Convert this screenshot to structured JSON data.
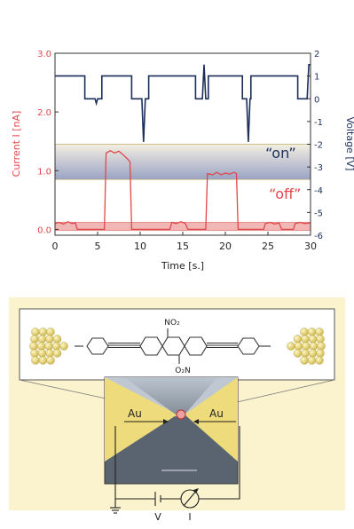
{
  "chart_data": {
    "type": "line",
    "xlabel": "Time [s.]",
    "ylabel_left": "Current I [nA]",
    "ylabel_right": "Voltage [V]",
    "xlim": [
      0,
      30
    ],
    "ylim_left": [
      -0.1,
      3.0
    ],
    "ylim_right": [
      -6,
      2
    ],
    "x_ticks": [
      0,
      5,
      10,
      15,
      20,
      25,
      30
    ],
    "y_left_ticks": [
      "0.0",
      "1.0",
      "2.0",
      "3.0"
    ],
    "y_right_ticks": [
      2,
      1,
      0,
      -1,
      -2,
      -3,
      -4,
      -5,
      -6
    ],
    "grid": false,
    "colors": {
      "current": "#e0474c",
      "voltage": "#1c2e5a",
      "on_band": "#9aa3c4",
      "off_band": "#f2b6b4"
    },
    "annotations": [
      {
        "text": "“on”",
        "x": 26.5,
        "y_right": -2.6,
        "color": "#1c2e5a"
      },
      {
        "text": "“off”",
        "x": 27.0,
        "y_right": -4.4,
        "color": "#e0474c"
      }
    ],
    "bands": [
      {
        "name": "on",
        "y_left_from": 0.85,
        "y_left_to": 1.45
      },
      {
        "name": "off",
        "y_left_from": -0.02,
        "y_left_to": 0.12
      }
    ],
    "series": [
      {
        "axis": "left",
        "points": [
          [
            0,
            0.1
          ],
          [
            0.5,
            0.12
          ],
          [
            1,
            0.09
          ],
          [
            1.5,
            0.13
          ],
          [
            2,
            0.1
          ],
          [
            2.4,
            0.11
          ],
          [
            2.6,
            0.0
          ],
          [
            5.8,
            0.0
          ],
          [
            6.0,
            1.3
          ],
          [
            6.5,
            1.34
          ],
          [
            7,
            1.3
          ],
          [
            7.5,
            1.33
          ],
          [
            8,
            1.27
          ],
          [
            8.5,
            1.2
          ],
          [
            8.8,
            1.15
          ],
          [
            9.0,
            0.0
          ],
          [
            13.5,
            0.0
          ],
          [
            13.7,
            0.12
          ],
          [
            14.2,
            0.1
          ],
          [
            14.8,
            0.13
          ],
          [
            15.3,
            0.1
          ],
          [
            15.6,
            0.0
          ],
          [
            17.7,
            0.0
          ],
          [
            17.9,
            0.95
          ],
          [
            18.5,
            0.93
          ],
          [
            19,
            0.97
          ],
          [
            19.5,
            0.93
          ],
          [
            20,
            0.96
          ],
          [
            20.5,
            0.94
          ],
          [
            21,
            0.97
          ],
          [
            21.3,
            0.95
          ],
          [
            21.5,
            0.0
          ],
          [
            24.5,
            0.0
          ],
          [
            24.7,
            0.1
          ],
          [
            25.3,
            0.12
          ],
          [
            25.8,
            0.09
          ],
          [
            26.3,
            0.11
          ],
          [
            26.6,
            0.0
          ],
          [
            28.0,
            0.0
          ],
          [
            28.2,
            0.1
          ],
          [
            28.8,
            0.12
          ],
          [
            29.3,
            0.1
          ],
          [
            30,
            0.11
          ]
        ]
      },
      {
        "axis": "right",
        "points": [
          [
            0,
            1
          ],
          [
            3.5,
            1
          ],
          [
            3.5,
            0
          ],
          [
            4.7,
            0
          ],
          [
            4.85,
            -0.2
          ],
          [
            5,
            0
          ],
          [
            5.5,
            0
          ],
          [
            5.5,
            1
          ],
          [
            9,
            1
          ],
          [
            9,
            0
          ],
          [
            10.2,
            0
          ],
          [
            10.4,
            -1.9
          ],
          [
            10.6,
            0
          ],
          [
            11,
            0
          ],
          [
            11,
            1
          ],
          [
            16.5,
            1
          ],
          [
            16.5,
            0
          ],
          [
            17.3,
            0
          ],
          [
            17.5,
            1.5
          ],
          [
            17.7,
            0
          ],
          [
            18,
            0
          ],
          [
            18,
            1
          ],
          [
            22,
            1
          ],
          [
            22,
            0
          ],
          [
            22.5,
            0
          ],
          [
            22.7,
            -1.9
          ],
          [
            22.9,
            0
          ],
          [
            23,
            0
          ],
          [
            23,
            1
          ],
          [
            28.5,
            1
          ],
          [
            28.5,
            0
          ],
          [
            29.6,
            0
          ],
          [
            29.8,
            1.5
          ],
          [
            30,
            1.5
          ]
        ]
      }
    ]
  },
  "diagram": {
    "labels": {
      "no2_top": "NO₂",
      "o2n_bottom": "O₂N",
      "au_left": "Au",
      "au_right": "Au",
      "voltage": "V",
      "current": "I"
    },
    "colors": {
      "panel_bg": "#fbf3cd",
      "gold": "#e9d77a",
      "gold_dark": "#c9b24a",
      "wire": "#222222"
    }
  }
}
